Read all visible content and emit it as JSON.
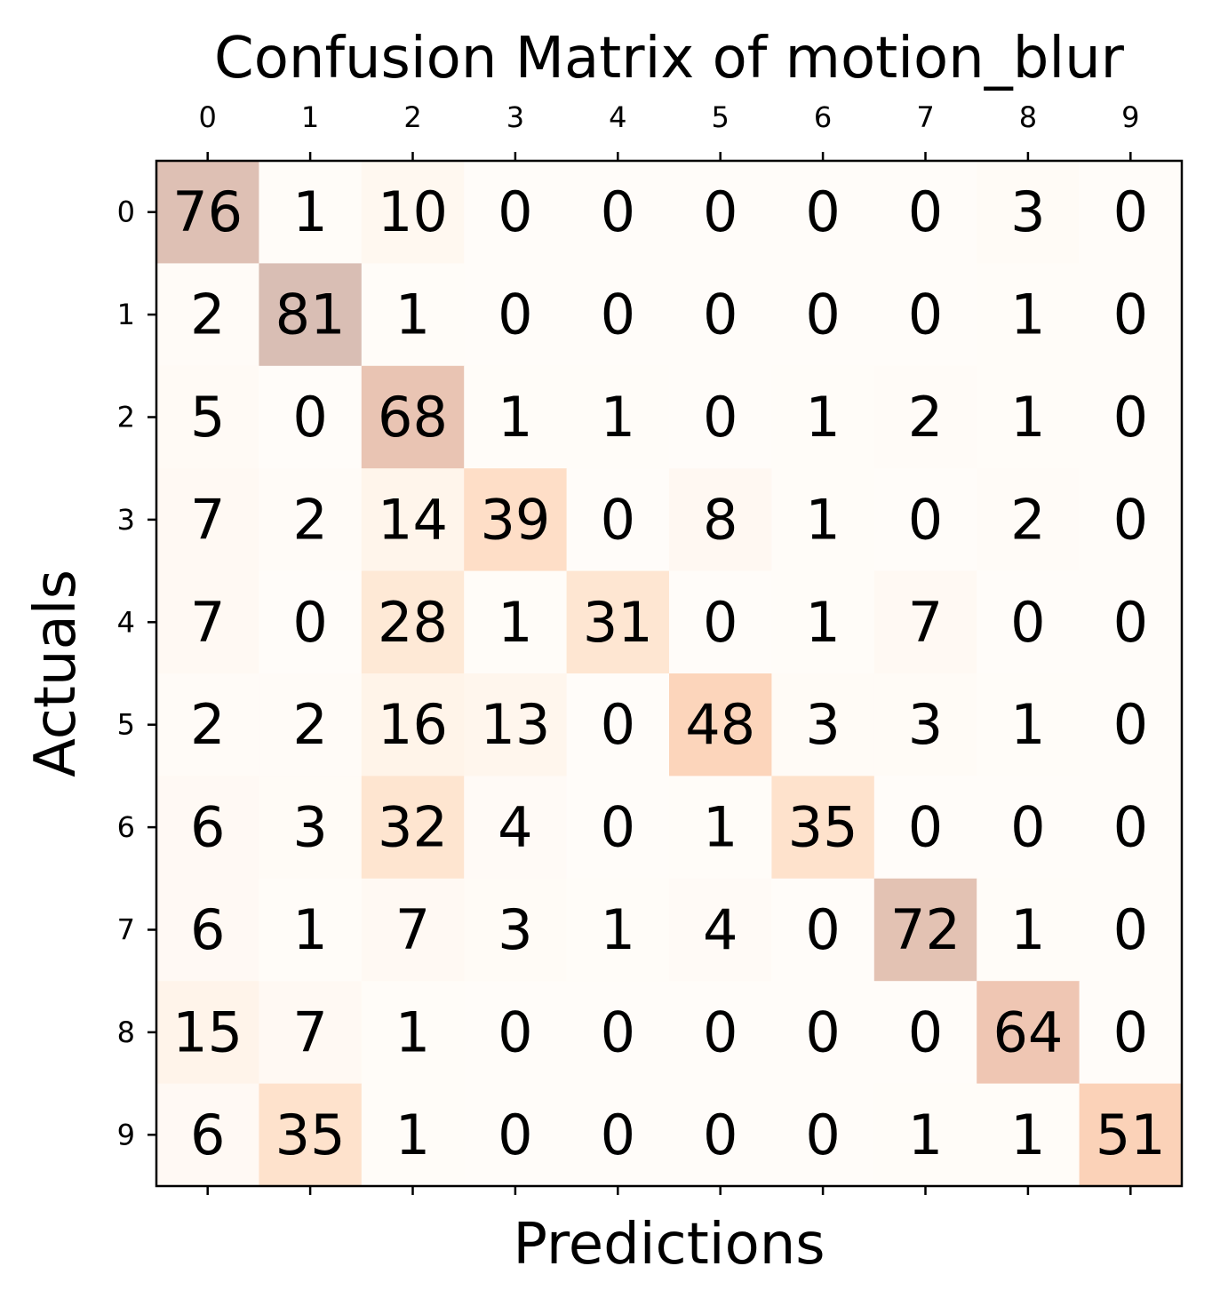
{
  "chart_data": {
    "type": "heatmap",
    "title": "Confusion Matrix of motion_blur",
    "xlabel": "Predictions",
    "ylabel": "Actuals",
    "x_categories": [
      "0",
      "1",
      "2",
      "3",
      "4",
      "5",
      "6",
      "7",
      "8",
      "9"
    ],
    "y_categories": [
      "0",
      "1",
      "2",
      "3",
      "4",
      "5",
      "6",
      "7",
      "8",
      "9"
    ],
    "matrix": [
      [
        76,
        1,
        10,
        0,
        0,
        0,
        0,
        0,
        3,
        0
      ],
      [
        2,
        81,
        1,
        0,
        0,
        0,
        0,
        0,
        1,
        0
      ],
      [
        5,
        0,
        68,
        1,
        1,
        0,
        1,
        2,
        1,
        0
      ],
      [
        7,
        2,
        14,
        39,
        0,
        8,
        1,
        0,
        2,
        0
      ],
      [
        7,
        0,
        28,
        1,
        31,
        0,
        1,
        7,
        0,
        0
      ],
      [
        2,
        2,
        16,
        13,
        0,
        48,
        3,
        3,
        1,
        0
      ],
      [
        6,
        3,
        32,
        4,
        0,
        1,
        35,
        0,
        0,
        0
      ],
      [
        6,
        1,
        7,
        3,
        1,
        4,
        0,
        72,
        1,
        0
      ],
      [
        15,
        7,
        1,
        0,
        0,
        0,
        0,
        0,
        64,
        0
      ],
      [
        6,
        35,
        1,
        0,
        0,
        0,
        0,
        1,
        1,
        51
      ]
    ],
    "colormap": "Oranges",
    "cell_alpha": 0.3,
    "x_ticks_position": "top",
    "grid": false
  }
}
